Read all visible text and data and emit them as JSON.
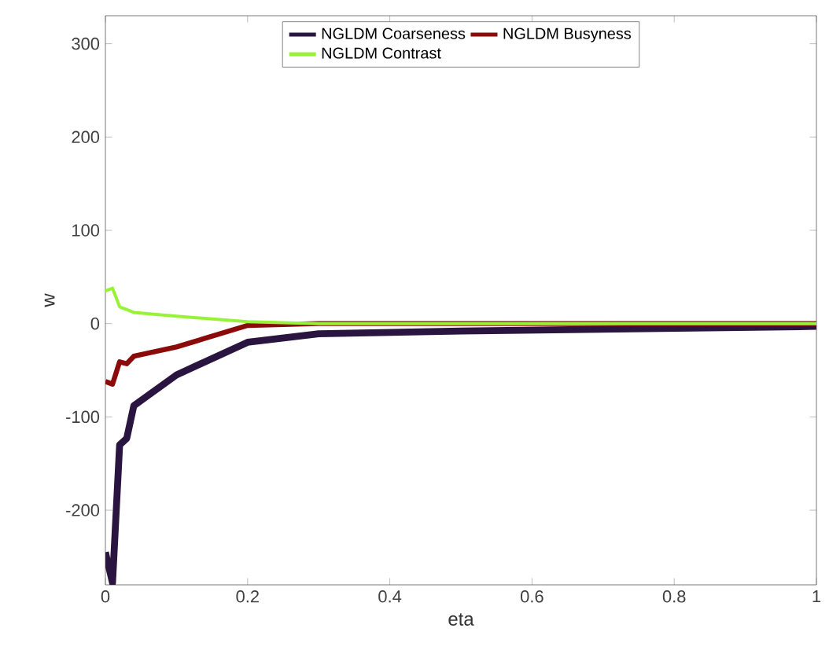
{
  "chart_data": {
    "type": "line",
    "xlabel": "eta",
    "ylabel": "w",
    "xlim": [
      0,
      1
    ],
    "ylim": [
      -280,
      330
    ],
    "xticks": [
      0,
      0.2,
      0.4,
      0.6,
      0.8,
      1
    ],
    "yticks": [
      -200,
      -100,
      0,
      100,
      200,
      300
    ],
    "legend": "top",
    "grid": false,
    "marker": "none",
    "line_style": "solid",
    "series": [
      {
        "name": "NGLDM Coarseness",
        "color": "#2a1540",
        "x": [
          0,
          0.01,
          0.02,
          0.03,
          0.04,
          0.1,
          0.2,
          0.3,
          0.5,
          1
        ],
        "values": [
          -245,
          -278,
          -130,
          -123,
          -88,
          -55,
          -20,
          -11,
          -8,
          -3
        ]
      },
      {
        "name": "NGLDM Busyness",
        "color": "#8b0a0a",
        "x": [
          0,
          0.01,
          0.02,
          0.03,
          0.04,
          0.1,
          0.2,
          0.3,
          1
        ],
        "values": [
          -62,
          -65,
          -41,
          -43,
          -35,
          -25,
          -2,
          0,
          0
        ]
      },
      {
        "name": "NGLDM Contrast",
        "color": "#99f23a",
        "x": [
          0,
          0.01,
          0.02,
          0.04,
          0.1,
          0.2,
          0.3,
          1
        ],
        "values": [
          35,
          38,
          18,
          12,
          8,
          2,
          0,
          0
        ]
      }
    ]
  }
}
